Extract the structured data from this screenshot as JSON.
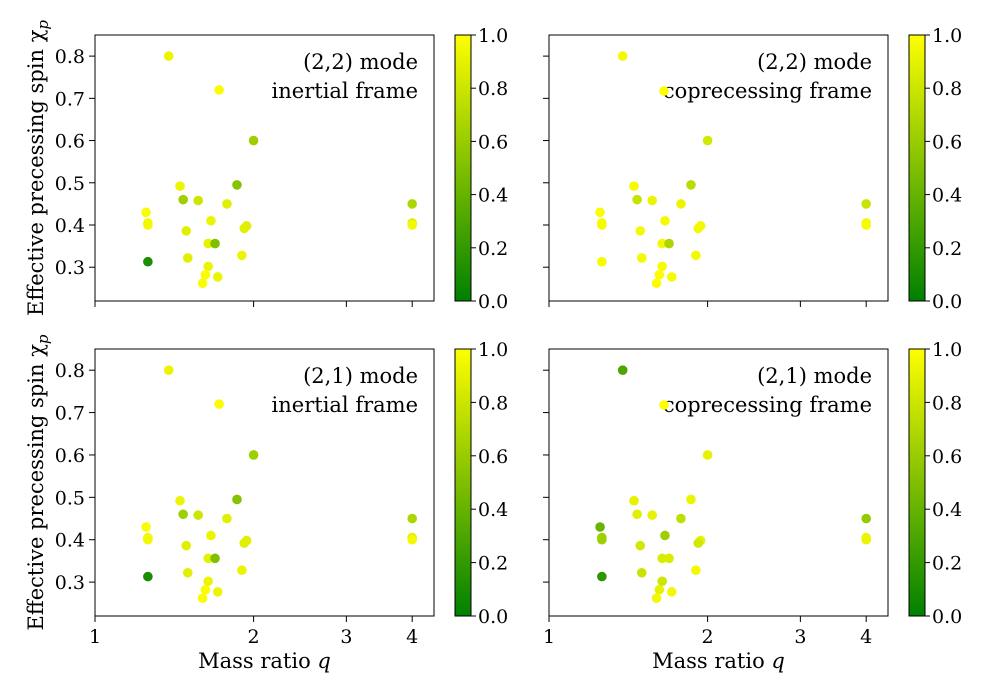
{
  "colors": {
    "low": "#008000",
    "high": "#ffff00",
    "axes": "#000000",
    "background": "#ffffff"
  },
  "chart_data": [
    {
      "type": "scatter",
      "panel": "top-left",
      "annotation_lines": [
        "(2,2) mode",
        "inertial frame"
      ],
      "legend_marker": false,
      "annotation_placement": "top-right",
      "xscale": "log",
      "xlim": [
        1,
        4.4
      ],
      "ylim": [
        0.22,
        0.85
      ],
      "xticks": [
        1,
        2,
        3,
        4
      ],
      "xtick_labels": [],
      "yticks": [
        0.3,
        0.4,
        0.5,
        0.6,
        0.7,
        0.8
      ],
      "ytick_labels": [
        "0.3",
        "0.4",
        "0.5",
        "0.6",
        "0.7",
        "0.8"
      ],
      "xlabel": "",
      "ylabel": "Effective precessing spin χ",
      "ylabel_sub": "p",
      "colorbar": {
        "range": [
          0,
          1
        ],
        "ticks": [
          "0.0",
          "0.2",
          "0.4",
          "0.6",
          "0.8",
          "1.0"
        ],
        "colormap": "green-yellow"
      },
      "points": [
        {
          "q": 1.38,
          "chi": 0.8,
          "c": 0.92
        },
        {
          "q": 1.72,
          "chi": 0.72,
          "c": 0.98
        },
        {
          "q": 2.0,
          "chi": 0.6,
          "c": 0.62
        },
        {
          "q": 1.45,
          "chi": 0.492,
          "c": 0.92
        },
        {
          "q": 1.86,
          "chi": 0.495,
          "c": 0.52
        },
        {
          "q": 1.47,
          "chi": 0.46,
          "c": 0.62
        },
        {
          "q": 1.57,
          "chi": 0.458,
          "c": 0.8
        },
        {
          "q": 1.78,
          "chi": 0.45,
          "c": 0.88
        },
        {
          "q": 4.0,
          "chi": 0.45,
          "c": 0.68
        },
        {
          "q": 1.25,
          "chi": 0.43,
          "c": 0.98
        },
        {
          "q": 1.66,
          "chi": 0.41,
          "c": 0.92
        },
        {
          "q": 4.0,
          "chi": 0.405,
          "c": 0.88
        },
        {
          "q": 1.26,
          "chi": 0.405,
          "c": 0.95
        },
        {
          "q": 1.26,
          "chi": 0.4,
          "c": 0.95
        },
        {
          "q": 4.0,
          "chi": 0.4,
          "c": 0.95
        },
        {
          "q": 1.94,
          "chi": 0.398,
          "c": 0.88
        },
        {
          "q": 1.92,
          "chi": 0.392,
          "c": 0.88
        },
        {
          "q": 1.49,
          "chi": 0.386,
          "c": 0.88
        },
        {
          "q": 1.64,
          "chi": 0.356,
          "c": 0.9
        },
        {
          "q": 1.69,
          "chi": 0.356,
          "c": 0.5
        },
        {
          "q": 1.9,
          "chi": 0.328,
          "c": 0.92
        },
        {
          "q": 1.5,
          "chi": 0.322,
          "c": 0.88
        },
        {
          "q": 1.26,
          "chi": 0.313,
          "c": 0.1
        },
        {
          "q": 1.64,
          "chi": 0.302,
          "c": 0.92
        },
        {
          "q": 1.62,
          "chi": 0.282,
          "c": 0.98
        },
        {
          "q": 1.71,
          "chi": 0.277,
          "c": 0.92
        },
        {
          "q": 1.6,
          "chi": 0.262,
          "c": 0.98
        }
      ]
    },
    {
      "type": "scatter",
      "panel": "top-right",
      "annotation_lines": [
        "(2,2) mode",
        "coprecessing frame"
      ],
      "legend_marker": true,
      "annotation_placement": "top-right",
      "xscale": "log",
      "xlim": [
        1,
        4.4
      ],
      "ylim": [
        0.22,
        0.85
      ],
      "xticks": [
        1,
        2,
        3,
        4
      ],
      "xtick_labels": [],
      "yticks": [
        0.3,
        0.4,
        0.5,
        0.6,
        0.7,
        0.8
      ],
      "ytick_labels": [],
      "xlabel": "",
      "ylabel": "",
      "ylabel_sub": "",
      "colorbar": {
        "range": [
          0,
          1
        ],
        "ticks": [
          "0.0",
          "0.2",
          "0.4",
          "0.6",
          "0.8",
          "1.0"
        ],
        "colormap": "green-yellow"
      },
      "points": [
        {
          "q": 1.38,
          "chi": 0.8,
          "c": 0.95
        },
        {
          "q": 2.0,
          "chi": 0.6,
          "c": 0.82
        },
        {
          "q": 1.45,
          "chi": 0.492,
          "c": 0.96
        },
        {
          "q": 1.86,
          "chi": 0.495,
          "c": 0.72
        },
        {
          "q": 1.47,
          "chi": 0.46,
          "c": 0.78
        },
        {
          "q": 1.57,
          "chi": 0.458,
          "c": 0.92
        },
        {
          "q": 1.78,
          "chi": 0.45,
          "c": 0.92
        },
        {
          "q": 4.0,
          "chi": 0.45,
          "c": 0.78
        },
        {
          "q": 1.25,
          "chi": 0.43,
          "c": 0.98
        },
        {
          "q": 1.66,
          "chi": 0.41,
          "c": 0.96
        },
        {
          "q": 4.0,
          "chi": 0.405,
          "c": 0.95
        },
        {
          "q": 1.26,
          "chi": 0.405,
          "c": 0.97
        },
        {
          "q": 1.26,
          "chi": 0.4,
          "c": 0.97
        },
        {
          "q": 4.0,
          "chi": 0.4,
          "c": 0.97
        },
        {
          "q": 1.94,
          "chi": 0.398,
          "c": 0.95
        },
        {
          "q": 1.92,
          "chi": 0.392,
          "c": 0.95
        },
        {
          "q": 1.49,
          "chi": 0.386,
          "c": 0.96
        },
        {
          "q": 1.64,
          "chi": 0.356,
          "c": 0.95
        },
        {
          "q": 1.69,
          "chi": 0.356,
          "c": 0.68
        },
        {
          "q": 1.9,
          "chi": 0.328,
          "c": 0.95
        },
        {
          "q": 1.5,
          "chi": 0.322,
          "c": 0.95
        },
        {
          "q": 1.26,
          "chi": 0.313,
          "c": 0.97
        },
        {
          "q": 1.64,
          "chi": 0.302,
          "c": 0.97
        },
        {
          "q": 1.62,
          "chi": 0.282,
          "c": 0.99
        },
        {
          "q": 1.71,
          "chi": 0.277,
          "c": 0.97
        },
        {
          "q": 1.6,
          "chi": 0.262,
          "c": 0.99
        }
      ]
    },
    {
      "type": "scatter",
      "panel": "bottom-left",
      "annotation_lines": [
        "(2,1) mode",
        "inertial frame"
      ],
      "legend_marker": false,
      "annotation_placement": "top-right",
      "xscale": "log",
      "xlim": [
        1,
        4.4
      ],
      "ylim": [
        0.22,
        0.85
      ],
      "xticks": [
        1,
        2,
        3,
        4
      ],
      "xtick_labels": [
        "1",
        "2",
        "3",
        "4"
      ],
      "yticks": [
        0.3,
        0.4,
        0.5,
        0.6,
        0.7,
        0.8
      ],
      "ytick_labels": [
        "0.3",
        "0.4",
        "0.5",
        "0.6",
        "0.7",
        "0.8"
      ],
      "xlabel": "Mass ratio",
      "xlabel_var": "q",
      "ylabel": "Effective precessing spin χ",
      "ylabel_sub": "p",
      "colorbar": {
        "range": [
          0,
          1
        ],
        "ticks": [
          "0.0",
          "0.2",
          "0.4",
          "0.6",
          "0.8",
          "1.0"
        ],
        "colormap": "green-yellow"
      },
      "points": [
        {
          "q": 1.38,
          "chi": 0.8,
          "c": 0.92
        },
        {
          "q": 1.72,
          "chi": 0.72,
          "c": 0.98
        },
        {
          "q": 2.0,
          "chi": 0.6,
          "c": 0.62
        },
        {
          "q": 1.45,
          "chi": 0.492,
          "c": 0.92
        },
        {
          "q": 1.86,
          "chi": 0.495,
          "c": 0.52
        },
        {
          "q": 1.47,
          "chi": 0.46,
          "c": 0.62
        },
        {
          "q": 1.57,
          "chi": 0.458,
          "c": 0.8
        },
        {
          "q": 1.78,
          "chi": 0.45,
          "c": 0.88
        },
        {
          "q": 4.0,
          "chi": 0.45,
          "c": 0.68
        },
        {
          "q": 1.25,
          "chi": 0.43,
          "c": 0.98
        },
        {
          "q": 1.66,
          "chi": 0.41,
          "c": 0.92
        },
        {
          "q": 4.0,
          "chi": 0.405,
          "c": 0.88
        },
        {
          "q": 1.26,
          "chi": 0.405,
          "c": 0.95
        },
        {
          "q": 1.26,
          "chi": 0.4,
          "c": 0.95
        },
        {
          "q": 4.0,
          "chi": 0.4,
          "c": 0.95
        },
        {
          "q": 1.94,
          "chi": 0.398,
          "c": 0.88
        },
        {
          "q": 1.92,
          "chi": 0.392,
          "c": 0.88
        },
        {
          "q": 1.49,
          "chi": 0.386,
          "c": 0.88
        },
        {
          "q": 1.64,
          "chi": 0.356,
          "c": 0.9
        },
        {
          "q": 1.69,
          "chi": 0.356,
          "c": 0.5
        },
        {
          "q": 1.9,
          "chi": 0.328,
          "c": 0.92
        },
        {
          "q": 1.5,
          "chi": 0.322,
          "c": 0.88
        },
        {
          "q": 1.26,
          "chi": 0.313,
          "c": 0.1
        },
        {
          "q": 1.64,
          "chi": 0.302,
          "c": 0.92
        },
        {
          "q": 1.62,
          "chi": 0.282,
          "c": 0.98
        },
        {
          "q": 1.71,
          "chi": 0.277,
          "c": 0.92
        },
        {
          "q": 1.6,
          "chi": 0.262,
          "c": 0.98
        }
      ]
    },
    {
      "type": "scatter",
      "panel": "bottom-right",
      "annotation_lines": [
        "(2,1) mode",
        "coprecessing frame"
      ],
      "legend_marker": true,
      "annotation_placement": "top-right",
      "xscale": "log",
      "xlim": [
        1,
        4.4
      ],
      "ylim": [
        0.22,
        0.85
      ],
      "xticks": [
        1,
        2,
        3,
        4
      ],
      "xtick_labels": [
        "1",
        "2",
        "3",
        "4"
      ],
      "yticks": [
        0.3,
        0.4,
        0.5,
        0.6,
        0.7,
        0.8
      ],
      "ytick_labels": [],
      "xlabel": "Mass ratio",
      "xlabel_var": "q",
      "ylabel": "",
      "ylabel_sub": "",
      "colorbar": {
        "range": [
          0,
          1
        ],
        "ticks": [
          "0.0",
          "0.2",
          "0.4",
          "0.6",
          "0.8",
          "1.0"
        ],
        "colormap": "green-yellow"
      },
      "points": [
        {
          "q": 1.38,
          "chi": 0.8,
          "c": 0.3
        },
        {
          "q": 2.0,
          "chi": 0.6,
          "c": 0.9
        },
        {
          "q": 1.45,
          "chi": 0.492,
          "c": 0.9
        },
        {
          "q": 1.86,
          "chi": 0.495,
          "c": 0.92
        },
        {
          "q": 1.47,
          "chi": 0.46,
          "c": 0.88
        },
        {
          "q": 1.57,
          "chi": 0.458,
          "c": 0.9
        },
        {
          "q": 1.78,
          "chi": 0.45,
          "c": 0.75
        },
        {
          "q": 4.0,
          "chi": 0.45,
          "c": 0.58
        },
        {
          "q": 1.25,
          "chi": 0.43,
          "c": 0.4
        },
        {
          "q": 1.66,
          "chi": 0.41,
          "c": 0.62
        },
        {
          "q": 4.0,
          "chi": 0.405,
          "c": 0.92
        },
        {
          "q": 1.26,
          "chi": 0.405,
          "c": 0.62
        },
        {
          "q": 1.26,
          "chi": 0.4,
          "c": 0.62
        },
        {
          "q": 4.0,
          "chi": 0.4,
          "c": 0.92
        },
        {
          "q": 1.94,
          "chi": 0.398,
          "c": 0.9
        },
        {
          "q": 1.92,
          "chi": 0.392,
          "c": 0.82
        },
        {
          "q": 1.49,
          "chi": 0.386,
          "c": 0.82
        },
        {
          "q": 1.64,
          "chi": 0.356,
          "c": 0.85
        },
        {
          "q": 1.69,
          "chi": 0.356,
          "c": 0.85
        },
        {
          "q": 1.9,
          "chi": 0.328,
          "c": 0.95
        },
        {
          "q": 1.5,
          "chi": 0.322,
          "c": 0.78
        },
        {
          "q": 1.26,
          "chi": 0.313,
          "c": 0.18
        },
        {
          "q": 1.64,
          "chi": 0.302,
          "c": 0.8
        },
        {
          "q": 1.62,
          "chi": 0.282,
          "c": 0.9
        },
        {
          "q": 1.71,
          "chi": 0.277,
          "c": 0.95
        },
        {
          "q": 1.6,
          "chi": 0.262,
          "c": 0.95
        }
      ]
    }
  ]
}
